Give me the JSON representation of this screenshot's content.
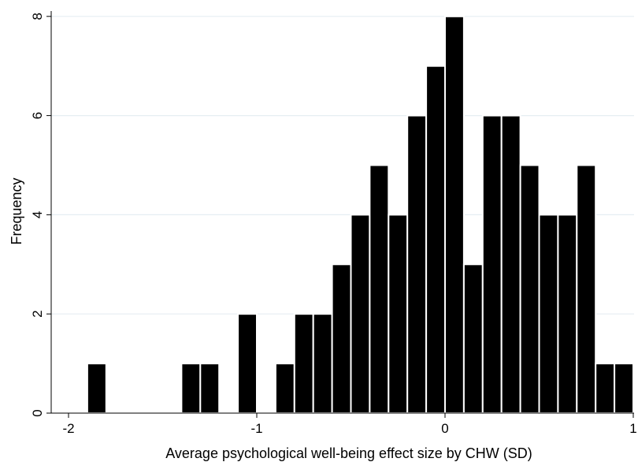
{
  "chart_data": {
    "type": "bar",
    "subtype": "histogram",
    "title": "",
    "xlabel": "Average psychological well-being effect size by CHW (SD)",
    "ylabel": "Frequency",
    "xlim": [
      -2.1,
      1.0
    ],
    "ylim": [
      0,
      8
    ],
    "xticks": [
      -2,
      -1,
      0,
      1
    ],
    "xtick_labels": [
      "-2",
      "-1",
      "0",
      "1"
    ],
    "yticks": [
      0,
      2,
      4,
      6,
      8
    ],
    "ytick_labels": [
      "0",
      "2",
      "4",
      "6",
      "8"
    ],
    "grid": true,
    "legend": "none",
    "bin_width": 0.1,
    "bars": [
      {
        "x0": -1.9,
        "x1": -1.8,
        "value": 1
      },
      {
        "x0": -1.4,
        "x1": -1.3,
        "value": 1
      },
      {
        "x0": -1.3,
        "x1": -1.2,
        "value": 1
      },
      {
        "x0": -1.1,
        "x1": -1.0,
        "value": 2
      },
      {
        "x0": -0.9,
        "x1": -0.8,
        "value": 1
      },
      {
        "x0": -0.8,
        "x1": -0.7,
        "value": 2
      },
      {
        "x0": -0.7,
        "x1": -0.6,
        "value": 2
      },
      {
        "x0": -0.6,
        "x1": -0.5,
        "value": 3
      },
      {
        "x0": -0.5,
        "x1": -0.4,
        "value": 4
      },
      {
        "x0": -0.4,
        "x1": -0.3,
        "value": 5
      },
      {
        "x0": -0.3,
        "x1": -0.2,
        "value": 4
      },
      {
        "x0": -0.2,
        "x1": -0.1,
        "value": 6
      },
      {
        "x0": -0.1,
        "x1": 0.0,
        "value": 7
      },
      {
        "x0": 0.0,
        "x1": 0.1,
        "value": 8
      },
      {
        "x0": 0.1,
        "x1": 0.2,
        "value": 3
      },
      {
        "x0": 0.2,
        "x1": 0.3,
        "value": 6
      },
      {
        "x0": 0.3,
        "x1": 0.4,
        "value": 6
      },
      {
        "x0": 0.4,
        "x1": 0.5,
        "value": 5
      },
      {
        "x0": 0.5,
        "x1": 0.6,
        "value": 4
      },
      {
        "x0": 0.6,
        "x1": 0.7,
        "value": 4
      },
      {
        "x0": 0.7,
        "x1": 0.8,
        "value": 5
      },
      {
        "x0": 0.8,
        "x1": 0.9,
        "value": 1
      },
      {
        "x0": 0.9,
        "x1": 1.0,
        "value": 1
      }
    ],
    "colors": {
      "bar_fill": "#000000",
      "bar_edge": "#ffffff",
      "grid": "#e6eef2",
      "axis": "#000000"
    }
  }
}
